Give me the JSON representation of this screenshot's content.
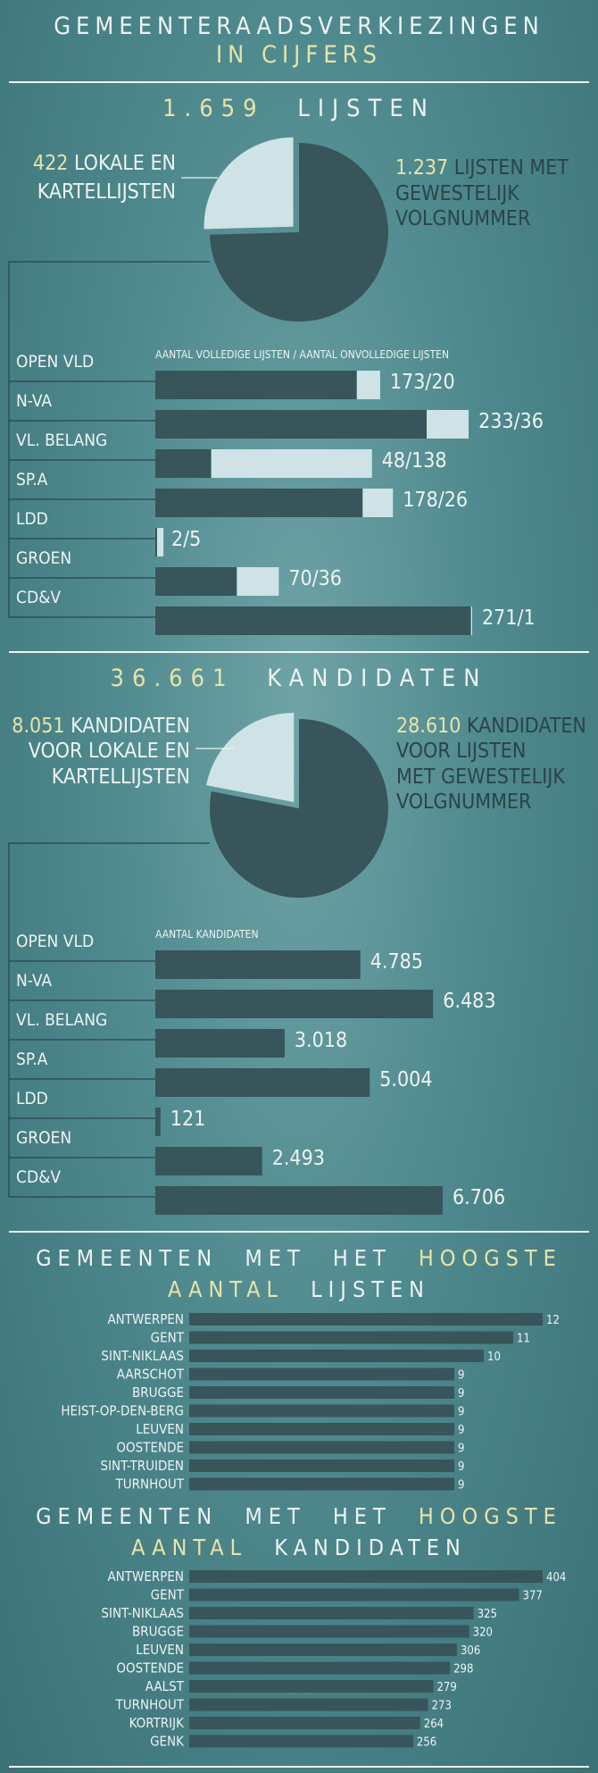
{
  "header": {
    "line1": "GEMEENTERAADSVERKIEZINGEN",
    "line2": "IN CIJFERS"
  },
  "colors": {
    "dark": "#37555a",
    "light": "#cfe3e6",
    "accent": "#e8e3a8",
    "text": "#eef3f2",
    "axis": "#2b4448"
  },
  "lists_section": {
    "title_num": "1.659",
    "title_word": "LIJSTEN",
    "pie_left": {
      "num": "422",
      "line1": "LOKALE EN",
      "line2": "KARTELLIJSTEN"
    },
    "pie_right": {
      "num": "1.237",
      "line1": "LIJSTEN MET",
      "line2": "GEWESTELIJK",
      "line3": "VOLGNUMMER"
    },
    "bar_header": "AANTAL VOLLEDIGE LIJSTEN / AANTAL ONVOLLEDIGE LIJSTEN"
  },
  "candidates_section": {
    "title_num": "36.661",
    "title_word": "KANDIDATEN",
    "pie_left": {
      "num": "8.051",
      "line1": "KANDIDATEN",
      "line2": "VOOR LOKALE EN",
      "line3": "KARTELLIJSTEN"
    },
    "pie_right": {
      "num": "28.610",
      "line1": "KANDIDATEN",
      "line2": "VOOR LIJSTEN",
      "line3": "MET GEWESTELIJK",
      "line4": "VOLGNUMMER"
    },
    "bar_header": "AANTAL KANDIDATEN"
  },
  "top_lists_title": {
    "w1": "GEMEENTEN",
    "w2": "MET",
    "w3": "HET",
    "w4": "HOOGSTE",
    "w5": "AANTAL",
    "w6": "LIJSTEN"
  },
  "top_candidates_title": {
    "w1": "GEMEENTEN",
    "w2": "MET",
    "w3": "HET",
    "w4": "HOOGSTE",
    "w5": "AANTAL",
    "w6": "KANDIDATEN"
  },
  "chart_data": [
    {
      "type": "pie",
      "labels": [
        "LOKALE EN KARTELLIJSTEN",
        "LIJSTEN MET GEWESTELIJK VOLGNUMMER"
      ],
      "values": [
        422,
        1237
      ]
    },
    {
      "type": "bar",
      "stacked": true,
      "orientation": "horizontal",
      "categories": [
        "OPEN VLD",
        "N-VA",
        "VL. BELANG",
        "SP.A",
        "LDD",
        "GROEN",
        "CD&V"
      ],
      "series": [
        {
          "values": [
            173,
            233,
            48,
            178,
            2,
            70,
            271
          ]
        },
        {
          "values": [
            20,
            36,
            138,
            26,
            5,
            36,
            1
          ]
        }
      ],
      "labels": [
        "173/20",
        "233/36",
        "48/138",
        "178/26",
        "2/5",
        "70/36",
        "271/1"
      ]
    },
    {
      "type": "pie",
      "labels": [
        "KANDIDATEN VOOR LOKALE EN KARTELLIJSTEN",
        "KANDIDATEN VOOR LIJSTEN MET GEWESTELIJK VOLGNUMMER"
      ],
      "values": [
        8051,
        28610
      ]
    },
    {
      "type": "bar",
      "orientation": "horizontal",
      "categories": [
        "OPEN VLD",
        "N-VA",
        "VL. BELANG",
        "SP.A",
        "LDD",
        "GROEN",
        "CD&V"
      ],
      "values": [
        4785,
        6483,
        3018,
        5004,
        121,
        2493,
        6706
      ],
      "labels": [
        "4.785",
        "6.483",
        "3.018",
        "5.004",
        "121",
        "2.493",
        "6.706"
      ]
    },
    {
      "type": "bar",
      "orientation": "horizontal",
      "categories": [
        "ANTWERPEN",
        "GENT",
        "SINT-NIKLAAS",
        "AARSCHOT",
        "BRUGGE",
        "HEIST-OP-DEN-BERG",
        "LEUVEN",
        "OOSTENDE",
        "SINT-TRUIDEN",
        "TURNHOUT"
      ],
      "values": [
        12,
        11,
        10,
        9,
        9,
        9,
        9,
        9,
        9,
        9
      ]
    },
    {
      "type": "bar",
      "orientation": "horizontal",
      "categories": [
        "ANTWERPEN",
        "GENT",
        "SINT-NIKLAAS",
        "BRUGGE",
        "LEUVEN",
        "OOSTENDE",
        "AALST",
        "TURNHOUT",
        "KORTRIJK",
        "GENK"
      ],
      "values": [
        404,
        377,
        325,
        320,
        306,
        298,
        279,
        273,
        264,
        256
      ]
    }
  ]
}
